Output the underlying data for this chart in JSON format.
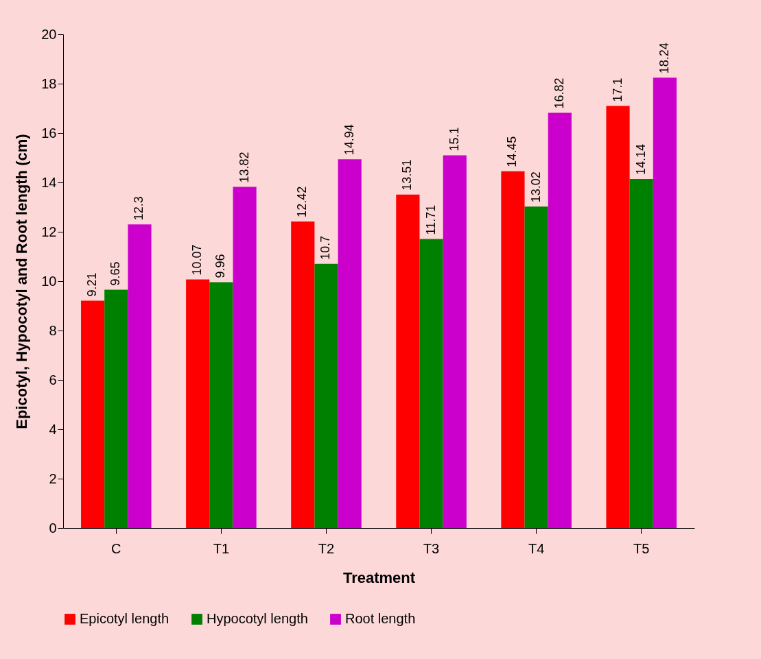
{
  "chart_data": {
    "type": "bar",
    "xlabel": "Treatment",
    "ylabel": "Epicotyl, Hypocotyl and Root length (cm)",
    "categories": [
      "C",
      "T1",
      "T2",
      "T3",
      "T4",
      "T5"
    ],
    "series": [
      {
        "name": "Epicotyl length",
        "color": "#ff0000",
        "values": [
          9.21,
          10.07,
          12.42,
          13.51,
          14.45,
          17.1
        ]
      },
      {
        "name": "Hypocotyl length",
        "color": "#008000",
        "values": [
          9.65,
          9.96,
          10.7,
          11.71,
          13.02,
          14.14
        ]
      },
      {
        "name": "Root length",
        "color": "#cc00cc",
        "values": [
          12.3,
          13.82,
          14.94,
          15.1,
          16.82,
          18.24
        ]
      }
    ],
    "ylim": [
      0,
      20
    ],
    "yticks": [
      0,
      2,
      4,
      6,
      8,
      10,
      12,
      14,
      16,
      18,
      20
    ],
    "data_labels": true,
    "legend": "bottom",
    "grid": false
  }
}
